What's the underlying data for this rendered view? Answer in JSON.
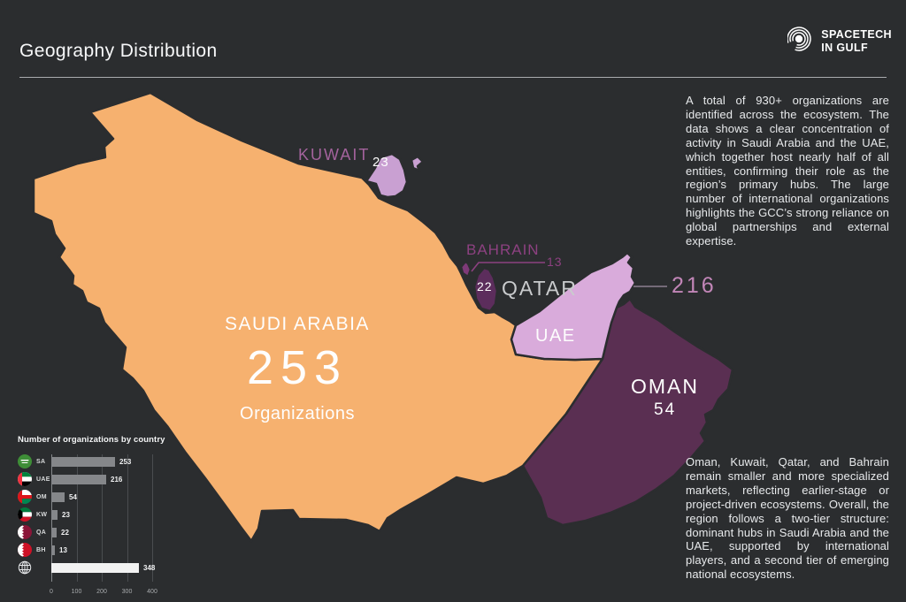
{
  "page": {
    "background": "#2b2d2f"
  },
  "header": {
    "title": "Geography Distribution",
    "logo": {
      "line1": "SPACETECH",
      "line2": "IN GULF"
    }
  },
  "insights": {
    "top": "A total of 930+ organizations are identified across the ecosystem. The data shows a clear concentration of activity in Saudi Arabia and the UAE, which together host nearly half of all entities, confirming their role as the region’s primary hubs. The large number of international organizations highlights the GCC’s strong reliance on global partnerships and external expertise.",
    "bottom": "Oman, Kuwait, Qatar, and Bahrain remain smaller and more specialized markets, reflecting earlier-stage or project-driven ecosystems. Overall, the region follows a two-tier structure: dominant hubs in Saudi Arabia and the UAE, supported by international players, and a second tier of emerging national ecosystems."
  },
  "map": {
    "countries": [
      {
        "id": "saudi-arabia",
        "label": "SAUDI ARABIA",
        "value": 253,
        "sublabel": "Organizations",
        "fill": "#f6b16f"
      },
      {
        "id": "kuwait",
        "label": "KUWAIT",
        "value": 23,
        "fill": "#c9a0d2",
        "label_color": "#a4639d"
      },
      {
        "id": "bahrain",
        "label": "BAHRAIN",
        "value": 13,
        "fill": "#7e3a78",
        "label_color": "#8d4181"
      },
      {
        "id": "qatar",
        "label": "QATAR",
        "value": 22,
        "fill": "#5c2d5c",
        "label_color": "#c9cbcd"
      },
      {
        "id": "uae",
        "label": "UAE",
        "value": 216,
        "fill": "#d9abdb",
        "value_color": "#c286b8"
      },
      {
        "id": "oman",
        "label": "OMAN",
        "value": 54,
        "fill": "#5a2f52"
      }
    ]
  },
  "chart_data": {
    "type": "bar",
    "title": "Number of organizations by country",
    "rows": [
      {
        "label": "SA",
        "icon": "saudi-arabia-flag",
        "value": 253
      },
      {
        "label": "UAE",
        "icon": "uae-flag",
        "value": 216
      },
      {
        "label": "OM",
        "icon": "oman-flag",
        "value": 54
      },
      {
        "label": "KW",
        "icon": "kuwait-flag",
        "value": 23
      },
      {
        "label": "QA",
        "icon": "qatar-flag",
        "value": 22
      },
      {
        "label": "BH",
        "icon": "bahrain-flag",
        "value": 13
      },
      {
        "label": "",
        "icon": "globe",
        "value": 348,
        "highlight": true
      }
    ],
    "xticks": [
      0,
      100,
      200,
      300,
      400
    ],
    "xlim": [
      0,
      430
    ],
    "grid": true,
    "legend_position": "none",
    "bar_color": "#85878a",
    "highlight_bar_color": "#f2f2f2"
  }
}
